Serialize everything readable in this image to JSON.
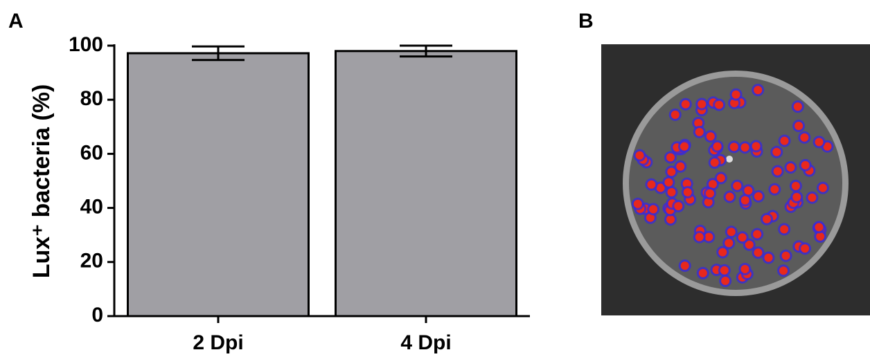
{
  "chart_data": {
    "type": "bar",
    "panel_label": "A",
    "y_label": "Lux⁺ bacteria (%)",
    "categories": [
      "2 Dpi",
      "4 Dpi"
    ],
    "values": [
      97.2,
      98
    ],
    "errors": [
      2.5,
      2
    ],
    "color": "#a09fa4",
    "ylim": [
      0,
      100
    ],
    "yticks": [
      0,
      20,
      40,
      60,
      80,
      100
    ]
  },
  "image_panel": {
    "label": "B"
  }
}
